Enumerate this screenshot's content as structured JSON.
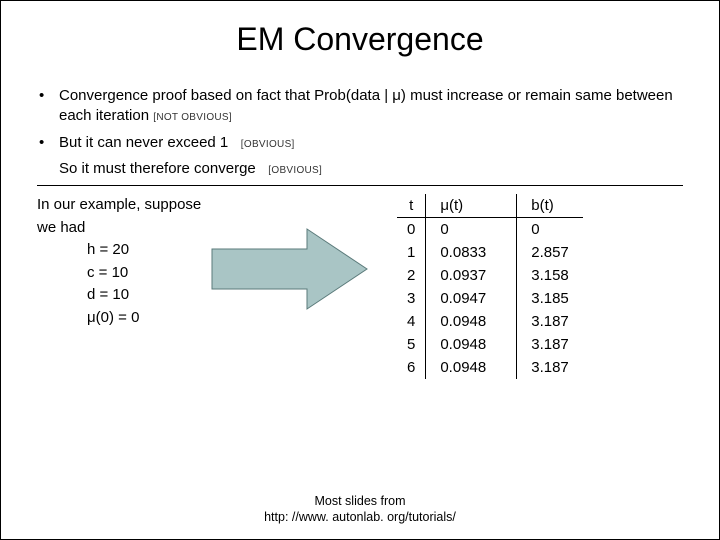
{
  "title": "EM Convergence",
  "bullet1_main": "Convergence proof based on fact that Prob(data | μ) must increase or remain same between each iteration",
  "bullet1_tag": "[NOT OBVIOUS]",
  "bullet2_main": "But it can never exceed 1",
  "bullet2_tag": "[OBVIOUS]",
  "line3_main": "So it must therefore converge",
  "line3_tag": "[OBVIOUS]",
  "example_intro": "In our example, suppose we had",
  "example_h": "h = 20",
  "example_c": "c = 10",
  "example_d": "d = 10",
  "example_mu0": "μ(0) = 0",
  "table": {
    "headers": {
      "t": "t",
      "mu": "μ(t)",
      "b": "b(t)"
    },
    "rows": [
      {
        "t": "0",
        "mu": "0",
        "b": "0"
      },
      {
        "t": "1",
        "mu": "0.0833",
        "b": "2.857"
      },
      {
        "t": "2",
        "mu": "0.0937",
        "b": "3.158"
      },
      {
        "t": "3",
        "mu": "0.0947",
        "b": "3.185"
      },
      {
        "t": "4",
        "mu": "0.0948",
        "b": "3.187"
      },
      {
        "t": "5",
        "mu": "0.0948",
        "b": "3.187"
      },
      {
        "t": "6",
        "mu": "0.0948",
        "b": "3.187"
      }
    ]
  },
  "arrow": {
    "fill": "#a9c5c5",
    "stroke": "#5a7a7a",
    "stroke_width": 1
  },
  "footer_line1": "Most slides from",
  "footer_line2": "http: //www. autonlab. org/tutorials/"
}
